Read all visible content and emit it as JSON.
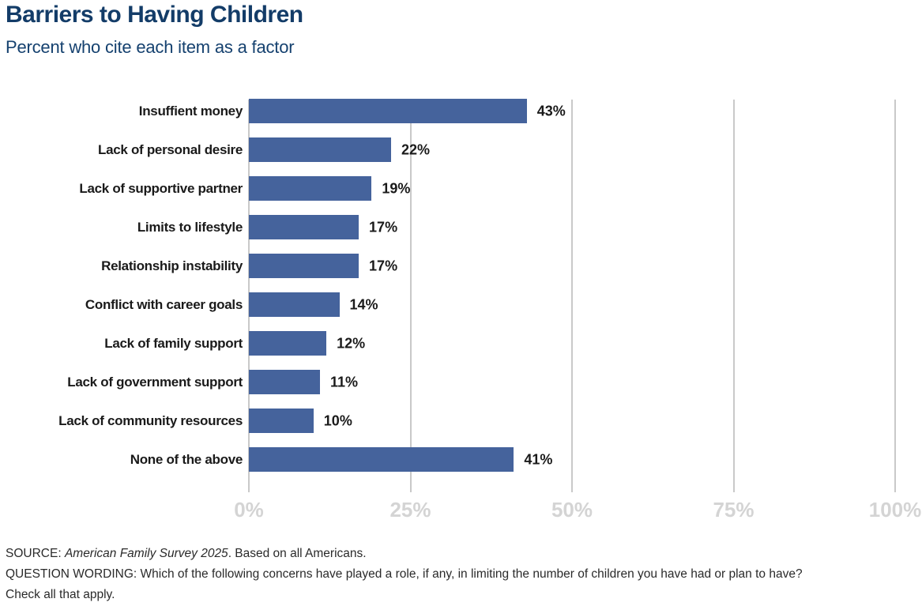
{
  "chart_data": {
    "type": "bar",
    "orientation": "horizontal",
    "title": "Barriers to Having Children",
    "subtitle": "Percent who cite each item as a factor",
    "categories": [
      "Insuffient money",
      "Lack of personal desire",
      "Lack of supportive partner",
      "Limits to lifestyle",
      "Relationship instability",
      "Conflict with career goals",
      "Lack of family support",
      "Lack of government support",
      "Lack of community resources",
      "None of the above"
    ],
    "values": [
      43,
      22,
      19,
      17,
      17,
      14,
      12,
      11,
      10,
      41
    ],
    "value_labels": [
      "43%",
      "22%",
      "19%",
      "17%",
      "17%",
      "14%",
      "12%",
      "11%",
      "10%",
      "41%"
    ],
    "x_tick_values": [
      0,
      25,
      50,
      75,
      100
    ],
    "x_tick_labels": [
      "0%",
      "25%",
      "50%",
      "75%",
      "100%"
    ],
    "xlim": [
      0,
      100
    ],
    "grid": true,
    "legend": false,
    "bar_color": "#45639c",
    "grid_color": "#c9c9c9",
    "tick_label_color": "#d4d4d4",
    "label_color": "#1a1a1a",
    "title_color": "#133c68"
  },
  "footer": {
    "source_prefix": "SOURCE: ",
    "source_italic": "American Family Survey 2025",
    "source_suffix": ". Based on all Americans.",
    "question_line1": "QUESTION WORDING: Which of the following concerns have played a role, if any, in limiting the number of children you have had or plan to have?",
    "question_line2": "Check all that apply."
  }
}
